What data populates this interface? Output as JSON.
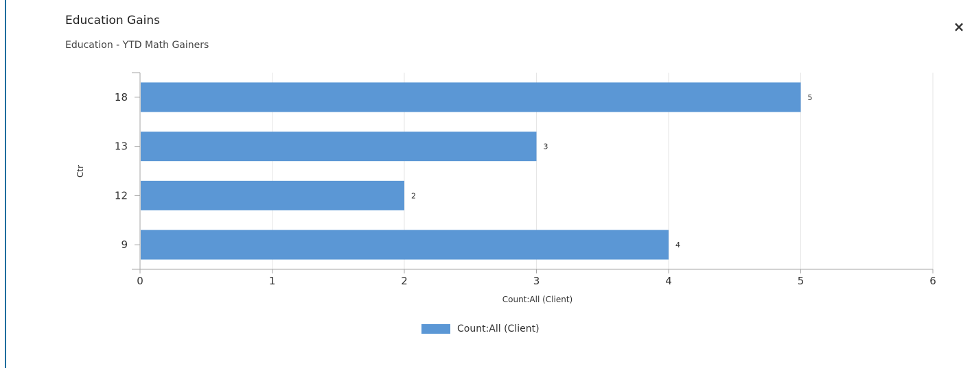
{
  "header": {
    "title": "Education Gains",
    "subtitle": "Education - YTD Math Gainers",
    "close_label": "×"
  },
  "colors": {
    "bar": "#5b97d5",
    "accent_rule": "#1f6e9e",
    "grid": "#e6e6e6",
    "axis": "#a6a6a6"
  },
  "chart_data": {
    "type": "bar",
    "orientation": "horizontal",
    "categories": [
      "18",
      "13",
      "12",
      "9"
    ],
    "series": [
      {
        "name": "Count:All (Client)",
        "values": [
          5,
          3,
          2,
          4
        ]
      }
    ],
    "data_labels": [
      "5",
      "3",
      "2",
      "4"
    ],
    "xlabel": "Count:All (Client)",
    "ylabel": "Ctr",
    "xlim": [
      0,
      6
    ],
    "x_ticks": [
      "0",
      "1",
      "2",
      "3",
      "4",
      "5",
      "6"
    ],
    "grid": true,
    "legend_position": "bottom-center"
  },
  "legend": {
    "label": "Count:All (Client)"
  }
}
